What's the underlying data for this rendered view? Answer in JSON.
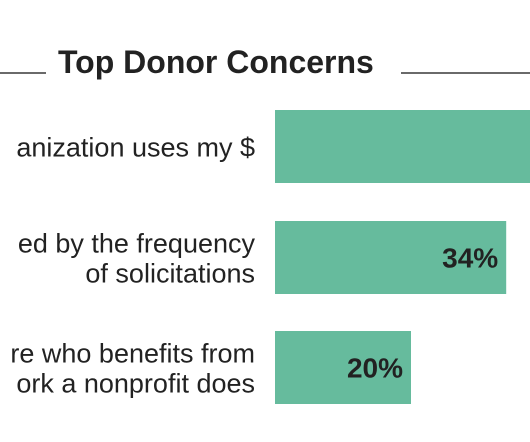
{
  "chart_data": {
    "type": "bar",
    "orientation": "horizontal",
    "title": "Top Donor Concerns",
    "categories": [
      [
        "anization uses my $"
      ],
      [
        "ed by the frequency",
        "of solicitations"
      ],
      [
        "re who benefits from",
        "ork a nonprofit does"
      ]
    ],
    "values": [
      null,
      34,
      20
    ],
    "value_labels": [
      "",
      "34%",
      "20%"
    ],
    "bar_color": "#66bb9d",
    "xlim": [
      0,
      63
    ],
    "legend": "none",
    "grid": false
  }
}
